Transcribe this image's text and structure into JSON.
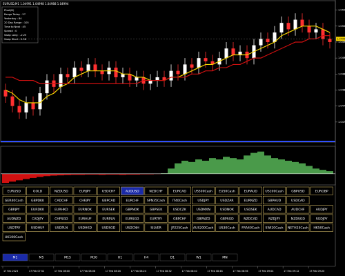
{
  "header": {
    "title": "EURUSD,M1 1.04991 1.04998 1.04988 1.04994"
  },
  "info_box": {
    "lines": [
      "Pivot(D)",
      "Range Today : 57",
      "Yesterday : 84",
      "20 Day Range : 105",
      "Time to Next : 45",
      "Spread : 0",
      "Swap Long : -2.25",
      "Swap Short : 0.38"
    ]
  },
  "price_chart": {
    "candles": [
      [
        1.048,
        1.0482,
        1.0476,
        1.0478
      ],
      [
        1.0478,
        1.048,
        1.0473,
        1.0475
      ],
      [
        1.0475,
        1.0477,
        1.0471,
        1.0473
      ],
      [
        1.0473,
        1.0478,
        1.0471,
        1.0476
      ],
      [
        1.0476,
        1.0478,
        1.0472,
        1.0474
      ],
      [
        1.0474,
        1.0481,
        1.0472,
        1.0479
      ],
      [
        1.0479,
        1.0485,
        1.0477,
        1.0483
      ],
      [
        1.0483,
        1.0485,
        1.0479,
        1.0481
      ],
      [
        1.0481,
        1.0487,
        1.0479,
        1.0485
      ],
      [
        1.0485,
        1.0487,
        1.0482,
        1.0484
      ],
      [
        1.0484,
        1.0489,
        1.0482,
        1.0487
      ],
      [
        1.0487,
        1.0489,
        1.0484,
        1.0486
      ],
      [
        1.0486,
        1.049,
        1.0484,
        1.0488
      ],
      [
        1.0488,
        1.049,
        1.0484,
        1.0486
      ],
      [
        1.0486,
        1.0488,
        1.0483,
        1.0485
      ],
      [
        1.0485,
        1.0489,
        1.0483,
        1.0487
      ],
      [
        1.0487,
        1.0489,
        1.0482,
        1.0484
      ],
      [
        1.0484,
        1.0487,
        1.0482,
        1.0485
      ],
      [
        1.0485,
        1.0487,
        1.0481,
        1.0483
      ],
      [
        1.0483,
        1.0486,
        1.0481,
        1.0484
      ],
      [
        1.0484,
        1.0486,
        1.048,
        1.0482
      ],
      [
        1.0482,
        1.0485,
        1.048,
        1.0483
      ],
      [
        1.0483,
        1.0486,
        1.0481,
        1.0484
      ],
      [
        1.0484,
        1.0486,
        1.0481,
        1.0483
      ],
      [
        1.0483,
        1.0488,
        1.0481,
        1.0486
      ],
      [
        1.0486,
        1.0488,
        1.0483,
        1.0485
      ],
      [
        1.0485,
        1.049,
        1.0483,
        1.0488
      ],
      [
        1.0488,
        1.049,
        1.0485,
        1.0487
      ],
      [
        1.0487,
        1.0492,
        1.0485,
        1.049
      ],
      [
        1.049,
        1.0492,
        1.0487,
        1.0489
      ],
      [
        1.0489,
        1.0491,
        1.0486,
        1.0488
      ],
      [
        1.0488,
        1.0492,
        1.0486,
        1.049
      ],
      [
        1.049,
        1.0495,
        1.0488,
        1.0493
      ],
      [
        1.0493,
        1.0495,
        1.0489,
        1.0491
      ],
      [
        1.0491,
        1.0494,
        1.0489,
        1.0492
      ],
      [
        1.0492,
        1.0494,
        1.0488,
        1.049
      ],
      [
        1.049,
        1.0496,
        1.0488,
        1.0494
      ],
      [
        1.0494,
        1.0498,
        1.0492,
        1.0496
      ],
      [
        1.0496,
        1.0498,
        1.0493,
        1.0495
      ],
      [
        1.0495,
        1.05,
        1.0493,
        1.0498
      ],
      [
        1.0498,
        1.0503,
        1.0496,
        1.0501
      ],
      [
        1.0501,
        1.0503,
        1.0497,
        1.0499
      ],
      [
        1.0499,
        1.0504,
        1.0497,
        1.0502
      ],
      [
        1.0502,
        1.0504,
        1.0498,
        1.05
      ],
      [
        1.05,
        1.0502,
        1.0496,
        1.0498
      ],
      [
        1.0498,
        1.0501,
        1.0496,
        1.0499
      ],
      [
        1.0499,
        1.0501,
        1.0494,
        1.0496
      ],
      [
        1.0496,
        1.0498,
        1.0493,
        1.0495
      ]
    ],
    "up_color": "#ffffff",
    "down_color": "#ff3030",
    "ma_fast": {
      "color": "#f5d400",
      "values": [
        1.048,
        1.0479,
        1.0477,
        1.0476,
        1.0476,
        1.0476,
        1.0478,
        1.0479,
        1.0481,
        1.0482,
        1.0484,
        1.0485,
        1.0486,
        1.0486,
        1.0486,
        1.0486,
        1.0486,
        1.0485,
        1.0485,
        1.0484,
        1.0484,
        1.0483,
        1.0483,
        1.0483,
        1.0484,
        1.0484,
        1.0485,
        1.0486,
        1.0487,
        1.0488,
        1.0488,
        1.0489,
        1.049,
        1.0491,
        1.0491,
        1.0491,
        1.0492,
        1.0493,
        1.0494,
        1.0495,
        1.0497,
        1.0498,
        1.0499,
        1.05,
        1.05,
        1.05,
        1.0499,
        1.0498
      ]
    },
    "ma_slow": {
      "color": "#d01010",
      "values": [
        1.0484,
        1.0484,
        1.0483,
        1.0483,
        1.0483,
        1.0482,
        1.0482,
        1.0482,
        1.0482,
        1.0482,
        1.0482,
        1.0482,
        1.0482,
        1.0482,
        1.0482,
        1.0482,
        1.0482,
        1.0482,
        1.0482,
        1.0482,
        1.0483,
        1.0483,
        1.0483,
        1.0483,
        1.0484,
        1.0484,
        1.0484,
        1.0485,
        1.0485,
        1.0486,
        1.0486,
        1.0487,
        1.0487,
        1.0488,
        1.0488,
        1.0489,
        1.049,
        1.049,
        1.0491,
        1.0492,
        1.0493,
        1.0494,
        1.0495,
        1.0495,
        1.0496,
        1.0496,
        1.0497,
        1.0497
      ]
    },
    "ylim": [
      1.0465,
      1.0506
    ],
    "yticks": [
      {
        "value": 1.047,
        "label": "1.0470"
      },
      {
        "value": 1.0475,
        "label": "1.0475"
      },
      {
        "value": 1.048,
        "label": "1.0480"
      },
      {
        "value": 1.0485,
        "label": "1.0485"
      },
      {
        "value": 1.049,
        "label": "1.0490"
      },
      {
        "value": 1.0495,
        "label": "1.0495"
      },
      {
        "value": 1.05,
        "label": "1.0500"
      },
      {
        "value": 1.0505,
        "label": "1.0505"
      }
    ],
    "current_price": {
      "value": 1.0496,
      "label": "1.0496"
    }
  },
  "oscillator": {
    "ylim": [
      -40,
      100
    ],
    "up_color": "#4a9a4a",
    "down_color": "#d01010",
    "values": [
      -35,
      -30,
      -25,
      -20,
      -16,
      -12,
      -9,
      -7,
      -6,
      -5,
      -4,
      -4,
      -3,
      -3,
      -4,
      -3,
      -3,
      -4,
      -3,
      -3,
      -2,
      -2,
      -1,
      2,
      20,
      40,
      50,
      45,
      55,
      50,
      60,
      55,
      65,
      60,
      55,
      70,
      80,
      85,
      70,
      60,
      55,
      50,
      45,
      40,
      30,
      20,
      15,
      10
    ]
  },
  "symbols": {
    "selected": "AUDUSD",
    "rows": [
      [
        "EURUSD",
        "GOLD",
        "NZDUSD",
        "EURJPY",
        "USDCHF",
        "AUDUSD",
        "NZDCHF",
        "EURCAD",
        "US500Cash",
        "EU50Cash",
        "EURAUD",
        "US100Cash",
        "GBPUSD",
        "EURGBP"
      ],
      [
        "GER40Cash",
        "GBPDKK",
        "CADCHF",
        "CHFJPY",
        "GBPCAD",
        "EURCHF",
        "SPN35Cash",
        "IT40Cash",
        "USDJPY",
        "USDZAR",
        "EURNZD",
        "GBPAUD",
        "USDCAD"
      ],
      [
        "GBPJPY",
        "EURDKK",
        "EURHKD",
        "EURNOK",
        "EURSEK",
        "GBPNOK",
        "GBPSEK",
        "USDCZK",
        "USDMXN",
        "USDNOK",
        "USDSEK",
        "AUDCAD",
        "AUDCHF",
        "AUDJPY"
      ],
      [
        "AUDNZD",
        "CADJPY",
        "CHFSGD",
        "EURHUF",
        "EURPLN",
        "EURSGD",
        "EURTRY",
        "GBPCHF",
        "GBPNZD",
        "GBPSGD",
        "NZDCAD",
        "NZDJPY",
        "NZDSGD",
        "SGDJPY"
      ],
      [
        "USDTRY",
        "USDHUF",
        "USDPLN",
        "USDHKD",
        "USDSGD",
        "USDCNH",
        "SILVER",
        "JP225Cash",
        "AUS200Cash",
        "US30Cash",
        "FRA40Cash",
        "SWI20Cash",
        "NETH25Cash",
        "HK50Cash"
      ],
      [
        "UK100Cash"
      ]
    ]
  },
  "timeframes": {
    "selected": "M1",
    "items": [
      "M1",
      "M5",
      "M15",
      "M30",
      "H1",
      "H4",
      "D1",
      "W1",
      "MN"
    ]
  },
  "time_axis": [
    "17 Feb 2023",
    "17 Feb 07:52",
    "17 Feb 08:00",
    "17 Feb 08:08",
    "17 Feb 08:16",
    "17 Feb 08:24",
    "17 Feb 08:32",
    "17 Feb 08:40",
    "17 Feb 08:48",
    "17 Feb 08:56",
    "17 Feb 09:04",
    "17 Feb 09:12",
    "17 Feb 09:20"
  ]
}
